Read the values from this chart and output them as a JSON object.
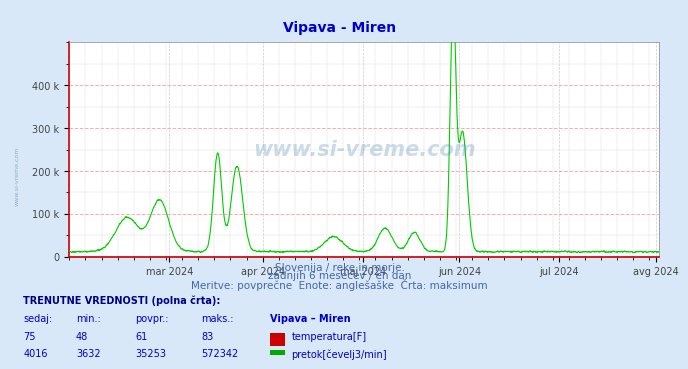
{
  "title": "Vipava - Miren",
  "title_color": "#0000cc",
  "fig_bg_color": "#d8e8f8",
  "plot_bg_color": "#ffffff",
  "ylim": [
    0,
    500000
  ],
  "yticks": [
    0,
    100000,
    200000,
    300000,
    400000
  ],
  "ytick_labels": [
    "0",
    "100 k",
    "200 k",
    "300 k",
    "400 k"
  ],
  "grid_color_major": "#ffaaaa",
  "grid_color_minor": "#cccccc",
  "xtick_positions": [
    31,
    60,
    91,
    121,
    152,
    182
  ],
  "xtick_labels": [
    "mar 2024",
    "apr 2024",
    "maj 2024",
    "jun 2024",
    "jul 2024",
    "avg 2024"
  ],
  "temp_line_color": "#cc0000",
  "flow_line_color": "#00cc00",
  "flow_max_line": 572342,
  "watermark_text": "www.si-vreme.com",
  "subtitle1": "Slovenija / reke in morje.",
  "subtitle2": "zadnjih 6 mesecev / en dan",
  "subtitle3": "Meritve: povprečne  Enote: anglešaške  Črta: maksimum",
  "subtitle_color": "#4466aa",
  "table_header": "TRENUTNE VREDNOSTI (polna črta):",
  "table_header_color": "#000088",
  "col_headers": [
    "sedaj:",
    "min.:",
    "povpr.:",
    "maks.:",
    "Vipava – Miren"
  ],
  "row1": [
    "75",
    "48",
    "61",
    "83"
  ],
  "row1_label": "temperatura[F]",
  "row1_color": "#cc0000",
  "row2": [
    "4016",
    "3632",
    "35253",
    "572342"
  ],
  "row2_label": "pretok[čevelj3/min]",
  "row2_color": "#00aa00",
  "col_color": "#0000cc"
}
